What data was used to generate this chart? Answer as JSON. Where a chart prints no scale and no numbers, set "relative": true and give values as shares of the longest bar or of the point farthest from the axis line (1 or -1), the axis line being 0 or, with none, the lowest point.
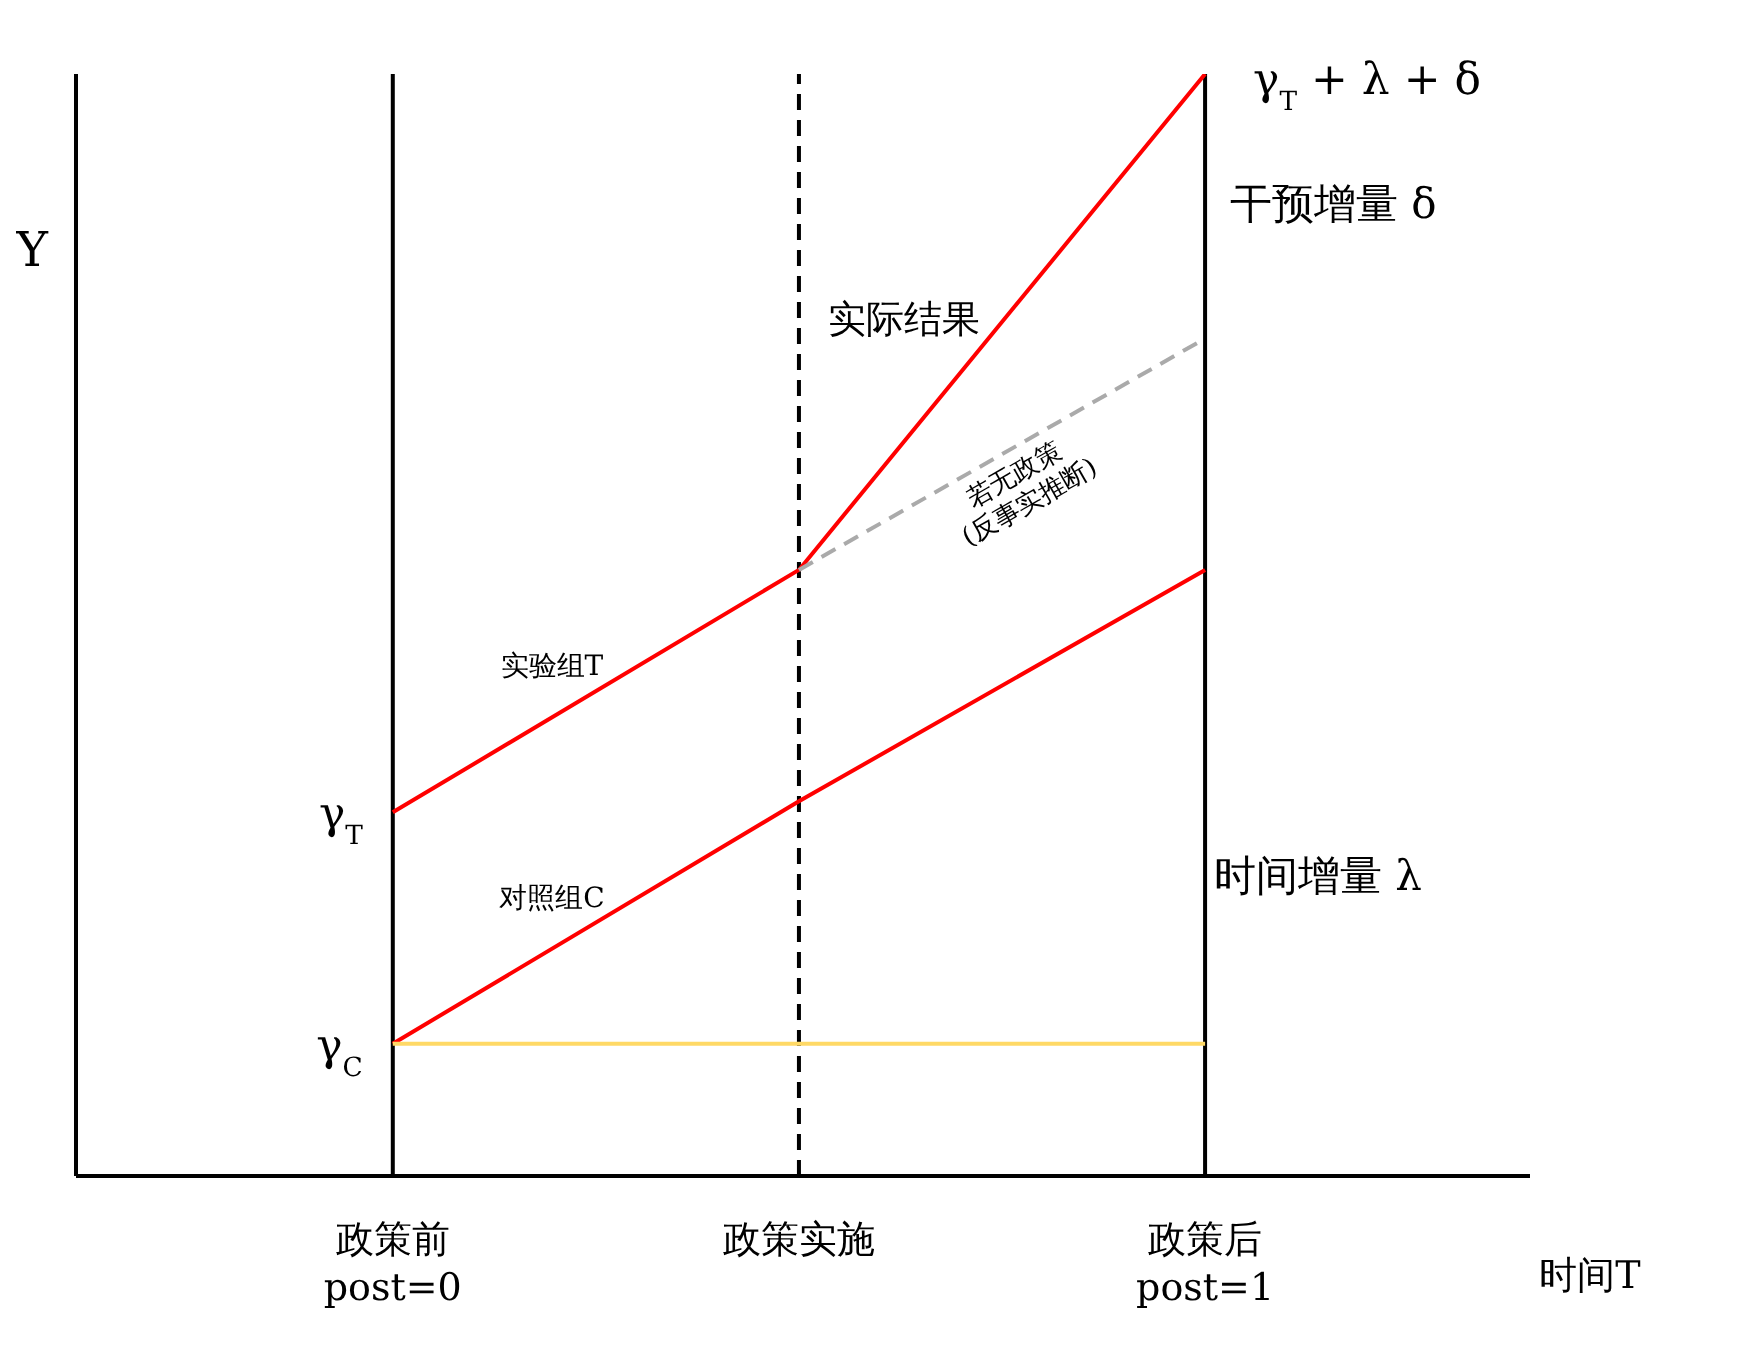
{
  "chart_data": {
    "type": "line",
    "relative": true,
    "xlabel": "时间T",
    "ylabel": "Y",
    "categories": [
      "政策前\npost=0",
      "政策实施",
      "政策后\npost=1"
    ],
    "series": [
      {
        "name": "实验组T",
        "color": "#ff0000",
        "values": [
          0.33,
          0.55,
          1
        ]
      },
      {
        "name": "若无政策\n(反事实推断)",
        "color": "#aaaaaa",
        "line_style": "dashed",
        "values": [
          null,
          0.55,
          0.76
        ]
      },
      {
        "name": "对照组C",
        "color": "#ff0000",
        "values": [
          0.12,
          0.34,
          0.55
        ]
      },
      {
        "color": "#ffd966",
        "values": [
          0.12,
          0.12,
          0.12
        ]
      }
    ],
    "ref_lines": [
      {
        "axis": "x",
        "value": "政策前\npost=0",
        "color": "#000000",
        "line_style": "solid"
      },
      {
        "axis": "x",
        "value": "政策实施",
        "color": "#000000",
        "line_style": "dashed"
      },
      {
        "axis": "x",
        "value": "政策后\npost=1",
        "color": "#000000",
        "line_style": "solid"
      }
    ],
    "annotations": [
      {
        "text": "γ$_{T}$",
        "x": "政策前\npost=0",
        "y": 0.33
      },
      {
        "text": "γ$_{C}$",
        "x": "政策前\npost=0",
        "y": 0.12
      },
      {
        "text": "γ$_{T}$ + λ + δ",
        "x": "政策后\npost=1",
        "y": 1
      },
      "实际结果",
      "干预增量 δ",
      "时间增量 λ"
    ]
  }
}
